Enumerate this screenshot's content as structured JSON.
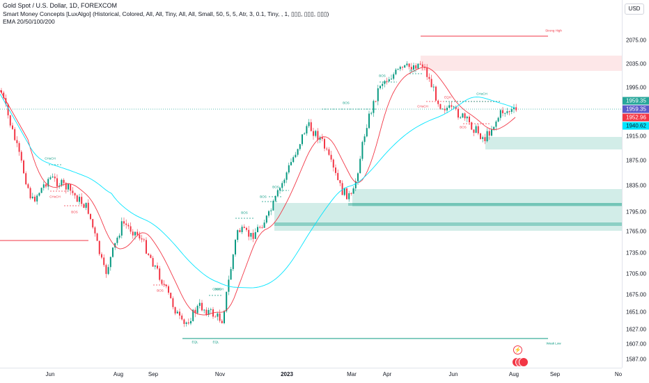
{
  "legend": {
    "symbol_line": "Gold Spot / U.S. Dollar, 1D, FOREXCOM",
    "indicator_line": "Smart Money Concepts [LuxAlgo] (Historical, Colored, All, All, Tiny, All, All, Small, 50, 5, 5, Atr, 3, 0.1, Tiny, , 1, ▯▯▯, ▯▯▯, ▯▯▯)",
    "ema_line": "EMA 20/50/100/200"
  },
  "currency_button": "USD",
  "price_axis": {
    "labels": [
      "2075.00",
      "2035.00",
      "1995.00",
      "1915.00",
      "1875.00",
      "1835.00",
      "1795.00",
      "1765.00",
      "1735.00",
      "1705.00",
      "1675.00",
      "1651.00",
      "1627.00",
      "1607.00",
      "1587.00"
    ]
  },
  "price_tags": [
    {
      "text": "1959.35",
      "color": "#26a69a"
    },
    {
      "text": "1959.35",
      "color": "#5b59c9"
    },
    {
      "text": "1952.96",
      "color": "#f23645"
    },
    {
      "text": "1940.62",
      "color": "#00e5ff"
    }
  ],
  "time_axis": {
    "labels": [
      {
        "text": "Jun",
        "bold": false
      },
      {
        "text": "Aug",
        "bold": false
      },
      {
        "text": "Sep",
        "bold": false
      },
      {
        "text": "Nov",
        "bold": false
      },
      {
        "text": "2023",
        "bold": true
      },
      {
        "text": "Mar",
        "bold": false
      },
      {
        "text": "Apr",
        "bold": false
      },
      {
        "text": "Jun",
        "bold": false
      },
      {
        "text": "Aug",
        "bold": false
      },
      {
        "text": "Sep",
        "bold": false
      },
      {
        "text": "No",
        "bold": false
      }
    ]
  },
  "annotations": [
    {
      "text": "Strong High",
      "color": "#f23645"
    },
    {
      "text": "Weak Low",
      "color": "#089981"
    },
    {
      "text": "EQL",
      "color": "#089981"
    },
    {
      "text": "EQL",
      "color": "#089981"
    },
    {
      "text": "EQH",
      "color": "#f23645"
    },
    {
      "text": "CHoCH",
      "color": "#089981"
    },
    {
      "text": "CHoCH",
      "color": "#f23645"
    },
    {
      "text": "BOS",
      "color": "#f23645"
    },
    {
      "text": "BOS",
      "color": "#f23645"
    },
    {
      "text": "CHoCH",
      "color": "#089981"
    },
    {
      "text": "BOS",
      "color": "#089981"
    },
    {
      "text": "BOS",
      "color": "#089981"
    },
    {
      "text": "BOS",
      "color": "#089981"
    },
    {
      "text": "BOS",
      "color": "#089981"
    },
    {
      "text": "BOS",
      "color": "#089981"
    },
    {
      "text": "BOS",
      "color": "#089981"
    },
    {
      "text": "BOS",
      "color": "#089981"
    },
    {
      "text": "CHoCH",
      "color": "#f23645"
    },
    {
      "text": "CHoCH",
      "color": "#089981"
    },
    {
      "text": "BOS",
      "color": "#f23645"
    }
  ],
  "colors": {
    "up": "#089981",
    "down": "#f23645",
    "ema20": "#f23645",
    "ema_long": "#00e5ff",
    "bull_zone": "rgba(8,153,129,0.18)",
    "bear_zone": "rgba(242,54,69,0.12)"
  },
  "icons": [
    "lightning-icon",
    "news-flags-icon"
  ]
}
